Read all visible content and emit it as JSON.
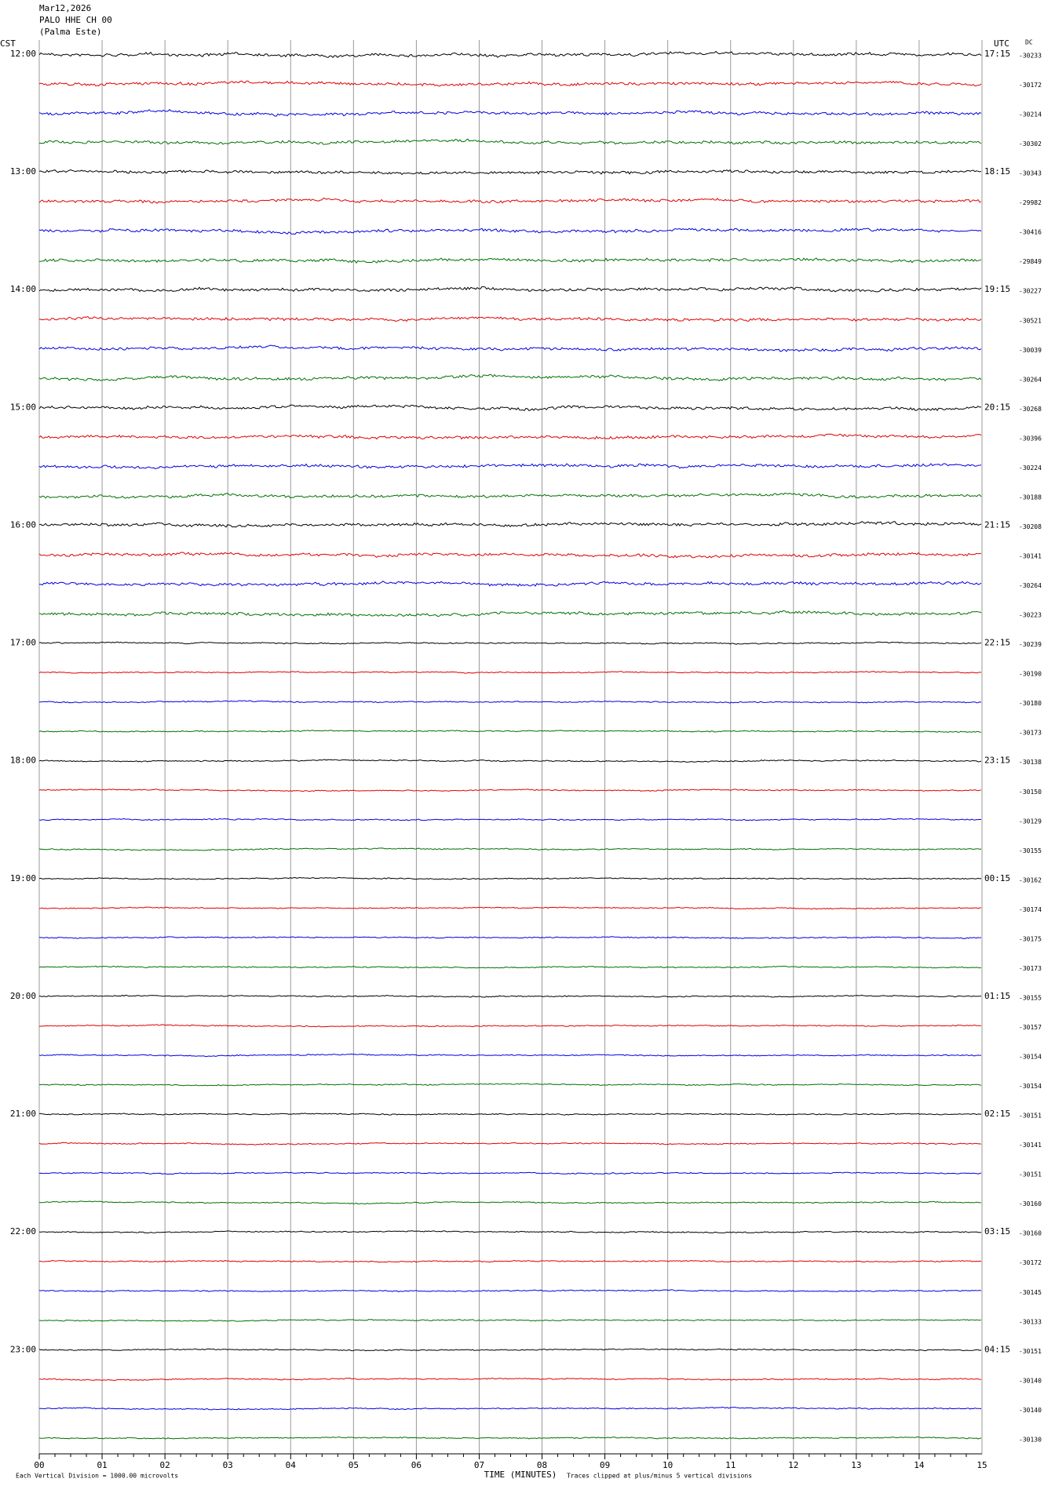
{
  "header": {
    "date": "Mar12,2026",
    "station": "PALO HHE CH 00",
    "location": "(Palma Este)"
  },
  "left_axis_label": "CST",
  "right_axis_label": "UTC",
  "dc_label": "DC",
  "trace_colors": [
    "#000000",
    "#e00000",
    "#0000e0",
    "#007000"
  ],
  "rows": [
    {
      "cst": "12:00",
      "utc": "17:15",
      "dc": "-30233"
    },
    {
      "dc": "-30172"
    },
    {
      "dc": "-30214"
    },
    {
      "dc": "-30302"
    },
    {
      "cst": "13:00",
      "utc": "18:15",
      "dc": "-30343"
    },
    {
      "dc": "-29982"
    },
    {
      "dc": "-30416"
    },
    {
      "dc": "-29849"
    },
    {
      "cst": "14:00",
      "utc": "19:15",
      "dc": "-30227"
    },
    {
      "dc": "-30521"
    },
    {
      "dc": "-30039"
    },
    {
      "dc": "-30264"
    },
    {
      "cst": "15:00",
      "utc": "20:15",
      "dc": "-30268"
    },
    {
      "dc": "-30396"
    },
    {
      "dc": "-30224"
    },
    {
      "dc": "-30188"
    },
    {
      "cst": "16:00",
      "utc": "21:15",
      "dc": "-30208"
    },
    {
      "dc": "-30141"
    },
    {
      "dc": "-30264"
    },
    {
      "dc": "-30223"
    },
    {
      "cst": "17:00",
      "utc": "22:15",
      "dc": "-30239"
    },
    {
      "dc": "-30190"
    },
    {
      "dc": "-30180"
    },
    {
      "dc": "-30173"
    },
    {
      "cst": "18:00",
      "utc": "23:15",
      "dc": "-30138"
    },
    {
      "dc": "-30150"
    },
    {
      "dc": "-30129"
    },
    {
      "dc": "-30155"
    },
    {
      "cst": "19:00",
      "utc": "00:15",
      "dc": "-30162"
    },
    {
      "dc": "-30174"
    },
    {
      "dc": "-30175"
    },
    {
      "dc": "-30173"
    },
    {
      "cst": "20:00",
      "utc": "01:15",
      "dc": "-30155"
    },
    {
      "dc": "-30157"
    },
    {
      "dc": "-30154"
    },
    {
      "dc": "-30154"
    },
    {
      "cst": "21:00",
      "utc": "02:15",
      "dc": "-30151"
    },
    {
      "dc": "-30141"
    },
    {
      "dc": "-30151"
    },
    {
      "dc": "-30160"
    },
    {
      "cst": "22:00",
      "utc": "03:15",
      "dc": "-30160"
    },
    {
      "dc": "-30172"
    },
    {
      "dc": "-30145"
    },
    {
      "dc": "-30133"
    },
    {
      "cst": "23:00",
      "utc": "04:15",
      "dc": "-30151"
    },
    {
      "dc": "-30140"
    },
    {
      "dc": "-30140"
    },
    {
      "dc": "-30130"
    }
  ],
  "x_axis": {
    "label": "TIME (MINUTES)",
    "ticks": [
      "00",
      "01",
      "02",
      "03",
      "04",
      "05",
      "06",
      "07",
      "08",
      "09",
      "10",
      "11",
      "12",
      "13",
      "14",
      "15"
    ]
  },
  "footer": {
    "scale": "Each Vertical Division = 1000.00 microvolts",
    "clip": "Traces clipped at plus/minus 5 vertical divisions"
  }
}
